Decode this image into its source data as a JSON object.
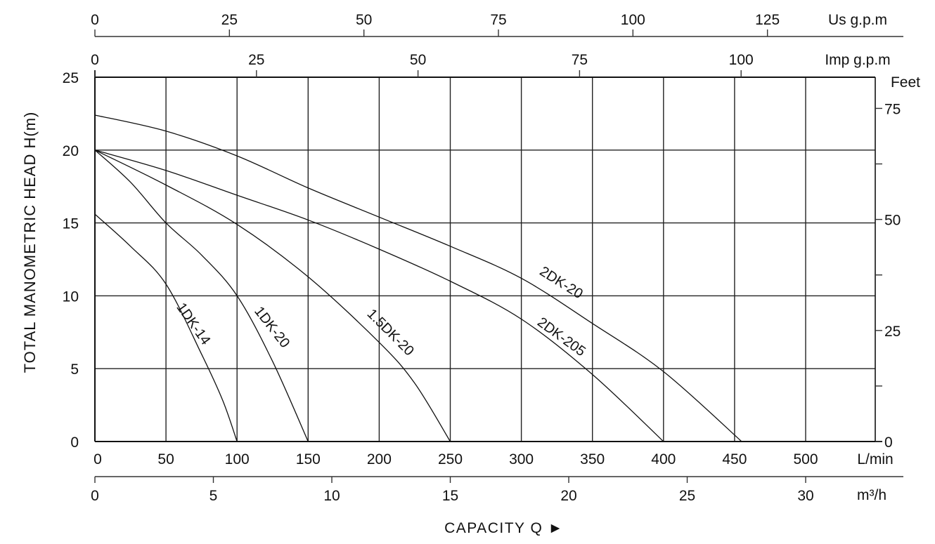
{
  "chart_data": {
    "type": "line",
    "title": "",
    "xlabel": "CAPACITY Q",
    "xlabel_arrow": "►",
    "ylabel": "TOTAL MANOMETRIC HEAD H(m)",
    "xlim": [
      0,
      548
    ],
    "ylim": [
      0,
      25
    ],
    "grid": true,
    "x_unit": "L/min",
    "x_ticks": [
      0,
      50,
      100,
      150,
      200,
      250,
      300,
      350,
      400,
      450,
      500
    ],
    "y_ticks": [
      0,
      5,
      10,
      15,
      20,
      25
    ],
    "secondary_axes": {
      "us_gpm": {
        "label": "Us g.p.m",
        "ticks": [
          0,
          25,
          50,
          75,
          100,
          125
        ]
      },
      "imp_gpm": {
        "label": "Imp g.p.m",
        "ticks": [
          0,
          25,
          50,
          75,
          100
        ]
      },
      "m3h": {
        "label": "m³/h",
        "ticks": [
          0,
          5,
          10,
          15,
          20,
          25,
          30
        ]
      },
      "feet": {
        "label": "Feet",
        "ticks": [
          0,
          25,
          50,
          75
        ]
      }
    },
    "series": [
      {
        "name": "1DK-14",
        "x": [
          0,
          25,
          50,
          75,
          90,
          100
        ],
        "y": [
          15.6,
          13.4,
          10.8,
          6.0,
          2.8,
          0
        ]
      },
      {
        "name": "1DK-20",
        "x": [
          0,
          25,
          50,
          75,
          100,
          125,
          150
        ],
        "y": [
          20,
          17.8,
          15.0,
          12.8,
          10.0,
          5.5,
          0
        ]
      },
      {
        "name": "1.5DK-20",
        "x": [
          0,
          50,
          100,
          150,
          200,
          225,
          250
        ],
        "y": [
          20,
          17.6,
          14.9,
          11.3,
          6.8,
          4.0,
          0
        ]
      },
      {
        "name": "2DK-205",
        "x": [
          0,
          50,
          100,
          150,
          200,
          250,
          300,
          350,
          400
        ],
        "y": [
          20,
          18.6,
          16.9,
          15.2,
          13.2,
          11.0,
          8.4,
          4.6,
          0
        ]
      },
      {
        "name": "2DK-20",
        "x": [
          0,
          50,
          100,
          150,
          200,
          250,
          300,
          350,
          400,
          455
        ],
        "y": [
          22.4,
          21.3,
          19.6,
          17.4,
          15.4,
          13.4,
          11.2,
          8.1,
          4.8,
          0
        ]
      }
    ]
  },
  "labels": {
    "us_gpm": "Us g.p.m",
    "imp_gpm": "Imp g.p.m",
    "feet": "Feet",
    "lmin": "L/min",
    "m3h": "m³/h",
    "ylabel": "TOTAL MANOMETRIC HEAD H(m)",
    "xlabel": "CAPACITY Q ►"
  }
}
